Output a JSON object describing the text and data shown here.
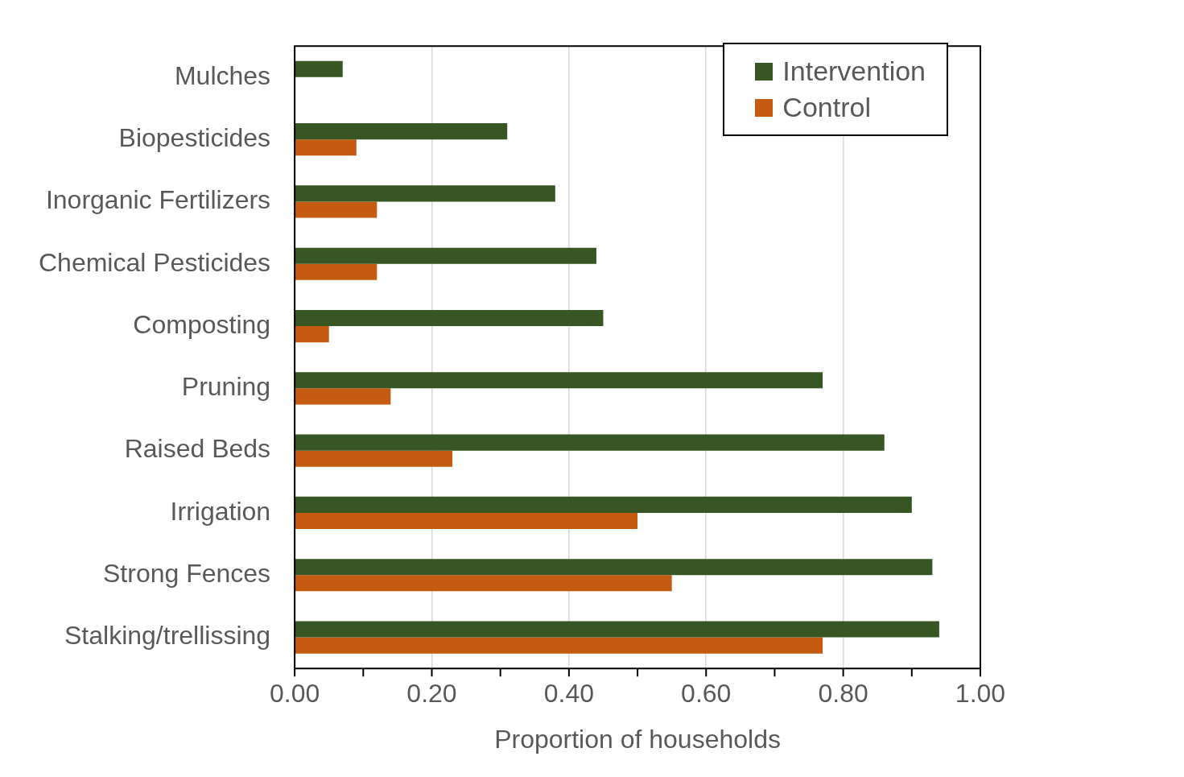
{
  "chart_data": {
    "type": "bar",
    "orientation": "horizontal",
    "xlabel": "Proportion of households",
    "categories": [
      "Mulches",
      "Biopesticides",
      "Inorganic Fertilizers",
      "Chemical Pesticides",
      "Composting",
      "Pruning",
      "Raised Beds",
      "Irrigation",
      "Strong Fences",
      "Stalking/trellissing"
    ],
    "series": [
      {
        "name": "Intervention",
        "color": "#375623",
        "values": [
          0.07,
          0.31,
          0.38,
          0.44,
          0.45,
          0.77,
          0.86,
          0.9,
          0.93,
          0.94
        ]
      },
      {
        "name": "Control",
        "color": "#c55a11",
        "values": [
          0,
          0.09,
          0.12,
          0.12,
          0.05,
          0.14,
          0.23,
          0.5,
          0.55,
          0.77
        ]
      }
    ],
    "xlim": [
      0,
      1
    ],
    "xticks": [
      {
        "value": 0,
        "label": "0.00"
      },
      {
        "value": 0.1,
        "label": null
      },
      {
        "value": 0.2,
        "label": "0.20"
      },
      {
        "value": 0.3,
        "label": null
      },
      {
        "value": 0.4,
        "label": "0.40"
      },
      {
        "value": 0.5,
        "label": null
      },
      {
        "value": 0.6,
        "label": "0.60"
      },
      {
        "value": 0.7,
        "label": null
      },
      {
        "value": 0.8,
        "label": "0.80"
      },
      {
        "value": 0.9,
        "label": null
      },
      {
        "value": 1,
        "label": "1.00"
      }
    ],
    "grid": "x",
    "legend": "top right"
  }
}
